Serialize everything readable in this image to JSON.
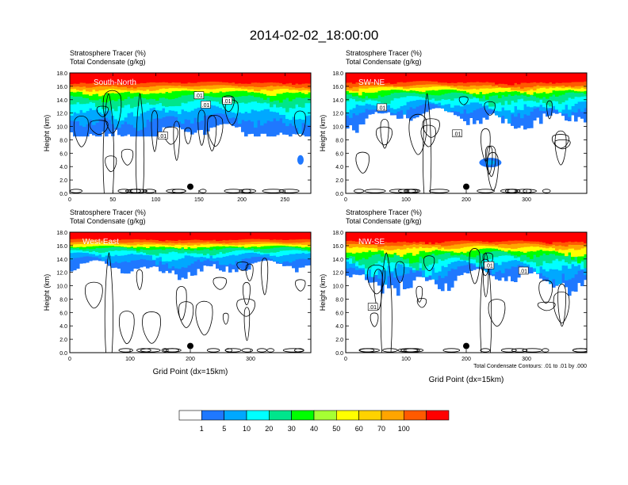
{
  "title": "2014-02-02_18:00:00",
  "chart_data": [
    {
      "type": "heatmap",
      "panel_label": "South-North",
      "title_line1": "Stratosphere Tracer   (%)",
      "title_line2": "Total Condensate   (g/kg)",
      "ylabel": "Height (km)",
      "xlabel": "",
      "xlim": [
        0,
        280
      ],
      "ylim": [
        0,
        18
      ],
      "x_ticks": [
        "0",
        "50",
        "100",
        "150",
        "200",
        "250"
      ],
      "x_tick_values": [
        0,
        50,
        100,
        150,
        200,
        250
      ],
      "y_ticks": [
        "0.0",
        "2.0",
        "4.0",
        "6.0",
        "8.0",
        "10.0",
        "12.0",
        "14.0",
        "16.0",
        "18.0"
      ],
      "marker": {
        "x": 140,
        "y": 1.0
      },
      "contour_labels": [
        ".01",
        ".01",
        ".01",
        ".01"
      ]
    },
    {
      "type": "heatmap",
      "panel_label": "SW-NE",
      "title_line1": "Stratosphere Tracer   (%)",
      "title_line2": "Total Condensate   (g/kg)",
      "ylabel": "Height (km)",
      "xlabel": "",
      "xlim": [
        0,
        400
      ],
      "ylim": [
        0,
        18
      ],
      "x_ticks": [
        "0",
        "100",
        "200",
        "300"
      ],
      "x_tick_values": [
        0,
        100,
        200,
        300
      ],
      "y_ticks": [
        "0.0",
        "2.0",
        "4.0",
        "6.0",
        "8.0",
        "10.0",
        "12.0",
        "14.0",
        "16.0",
        "18.0"
      ],
      "marker": {
        "x": 200,
        "y": 1.0
      },
      "contour_labels": [
        ".01",
        ".01"
      ]
    },
    {
      "type": "heatmap",
      "panel_label": "West-East",
      "title_line1": "Stratosphere Tracer   (%)",
      "title_line2": "Total Condensate   (g/kg)",
      "ylabel": "Height (km)",
      "xlabel": "Grid Point (dx=15km)",
      "xlim": [
        0,
        400
      ],
      "ylim": [
        0,
        18
      ],
      "x_ticks": [
        "0",
        "100",
        "200",
        "300"
      ],
      "x_tick_values": [
        0,
        100,
        200,
        300
      ],
      "y_ticks": [
        "0.0",
        "2.0",
        "4.0",
        "6.0",
        "8.0",
        "10.0",
        "12.0",
        "14.0",
        "16.0",
        "18.0"
      ],
      "marker": {
        "x": 200,
        "y": 1.0
      },
      "contour_labels": []
    },
    {
      "type": "heatmap",
      "panel_label": "NW-SE",
      "title_line1": "Stratosphere Tracer   (%)",
      "title_line2": "Total Condensate   (g/kg)",
      "ylabel": "Height (km)",
      "xlabel": "Grid Point (dx=15km)",
      "xlim": [
        0,
        400
      ],
      "ylim": [
        0,
        18
      ],
      "x_ticks": [
        "0",
        "100",
        "200",
        "300"
      ],
      "x_tick_values": [
        0,
        100,
        200,
        300
      ],
      "y_ticks": [
        "0.0",
        "2.0",
        "4.0",
        "6.0",
        "8.0",
        "10.0",
        "12.0",
        "14.0",
        "16.0",
        "18.0"
      ],
      "marker": {
        "x": 200,
        "y": 1.0
      },
      "contour_labels": [
        ".01",
        ".01",
        ".01"
      ],
      "footnote": "Total Condensate Contours: .01 to .01 by .000"
    }
  ],
  "colorbar": {
    "colors": [
      "#ffffff",
      "#1f78ff",
      "#00a8ff",
      "#00ffff",
      "#00e58c",
      "#00ff00",
      "#a6ff33",
      "#ffff00",
      "#ffd200",
      "#ffa500",
      "#ff5a00",
      "#ff0000"
    ],
    "labels": [
      "1",
      "5",
      "10",
      "20",
      "30",
      "40",
      "50",
      "60",
      "70",
      "100"
    ]
  }
}
